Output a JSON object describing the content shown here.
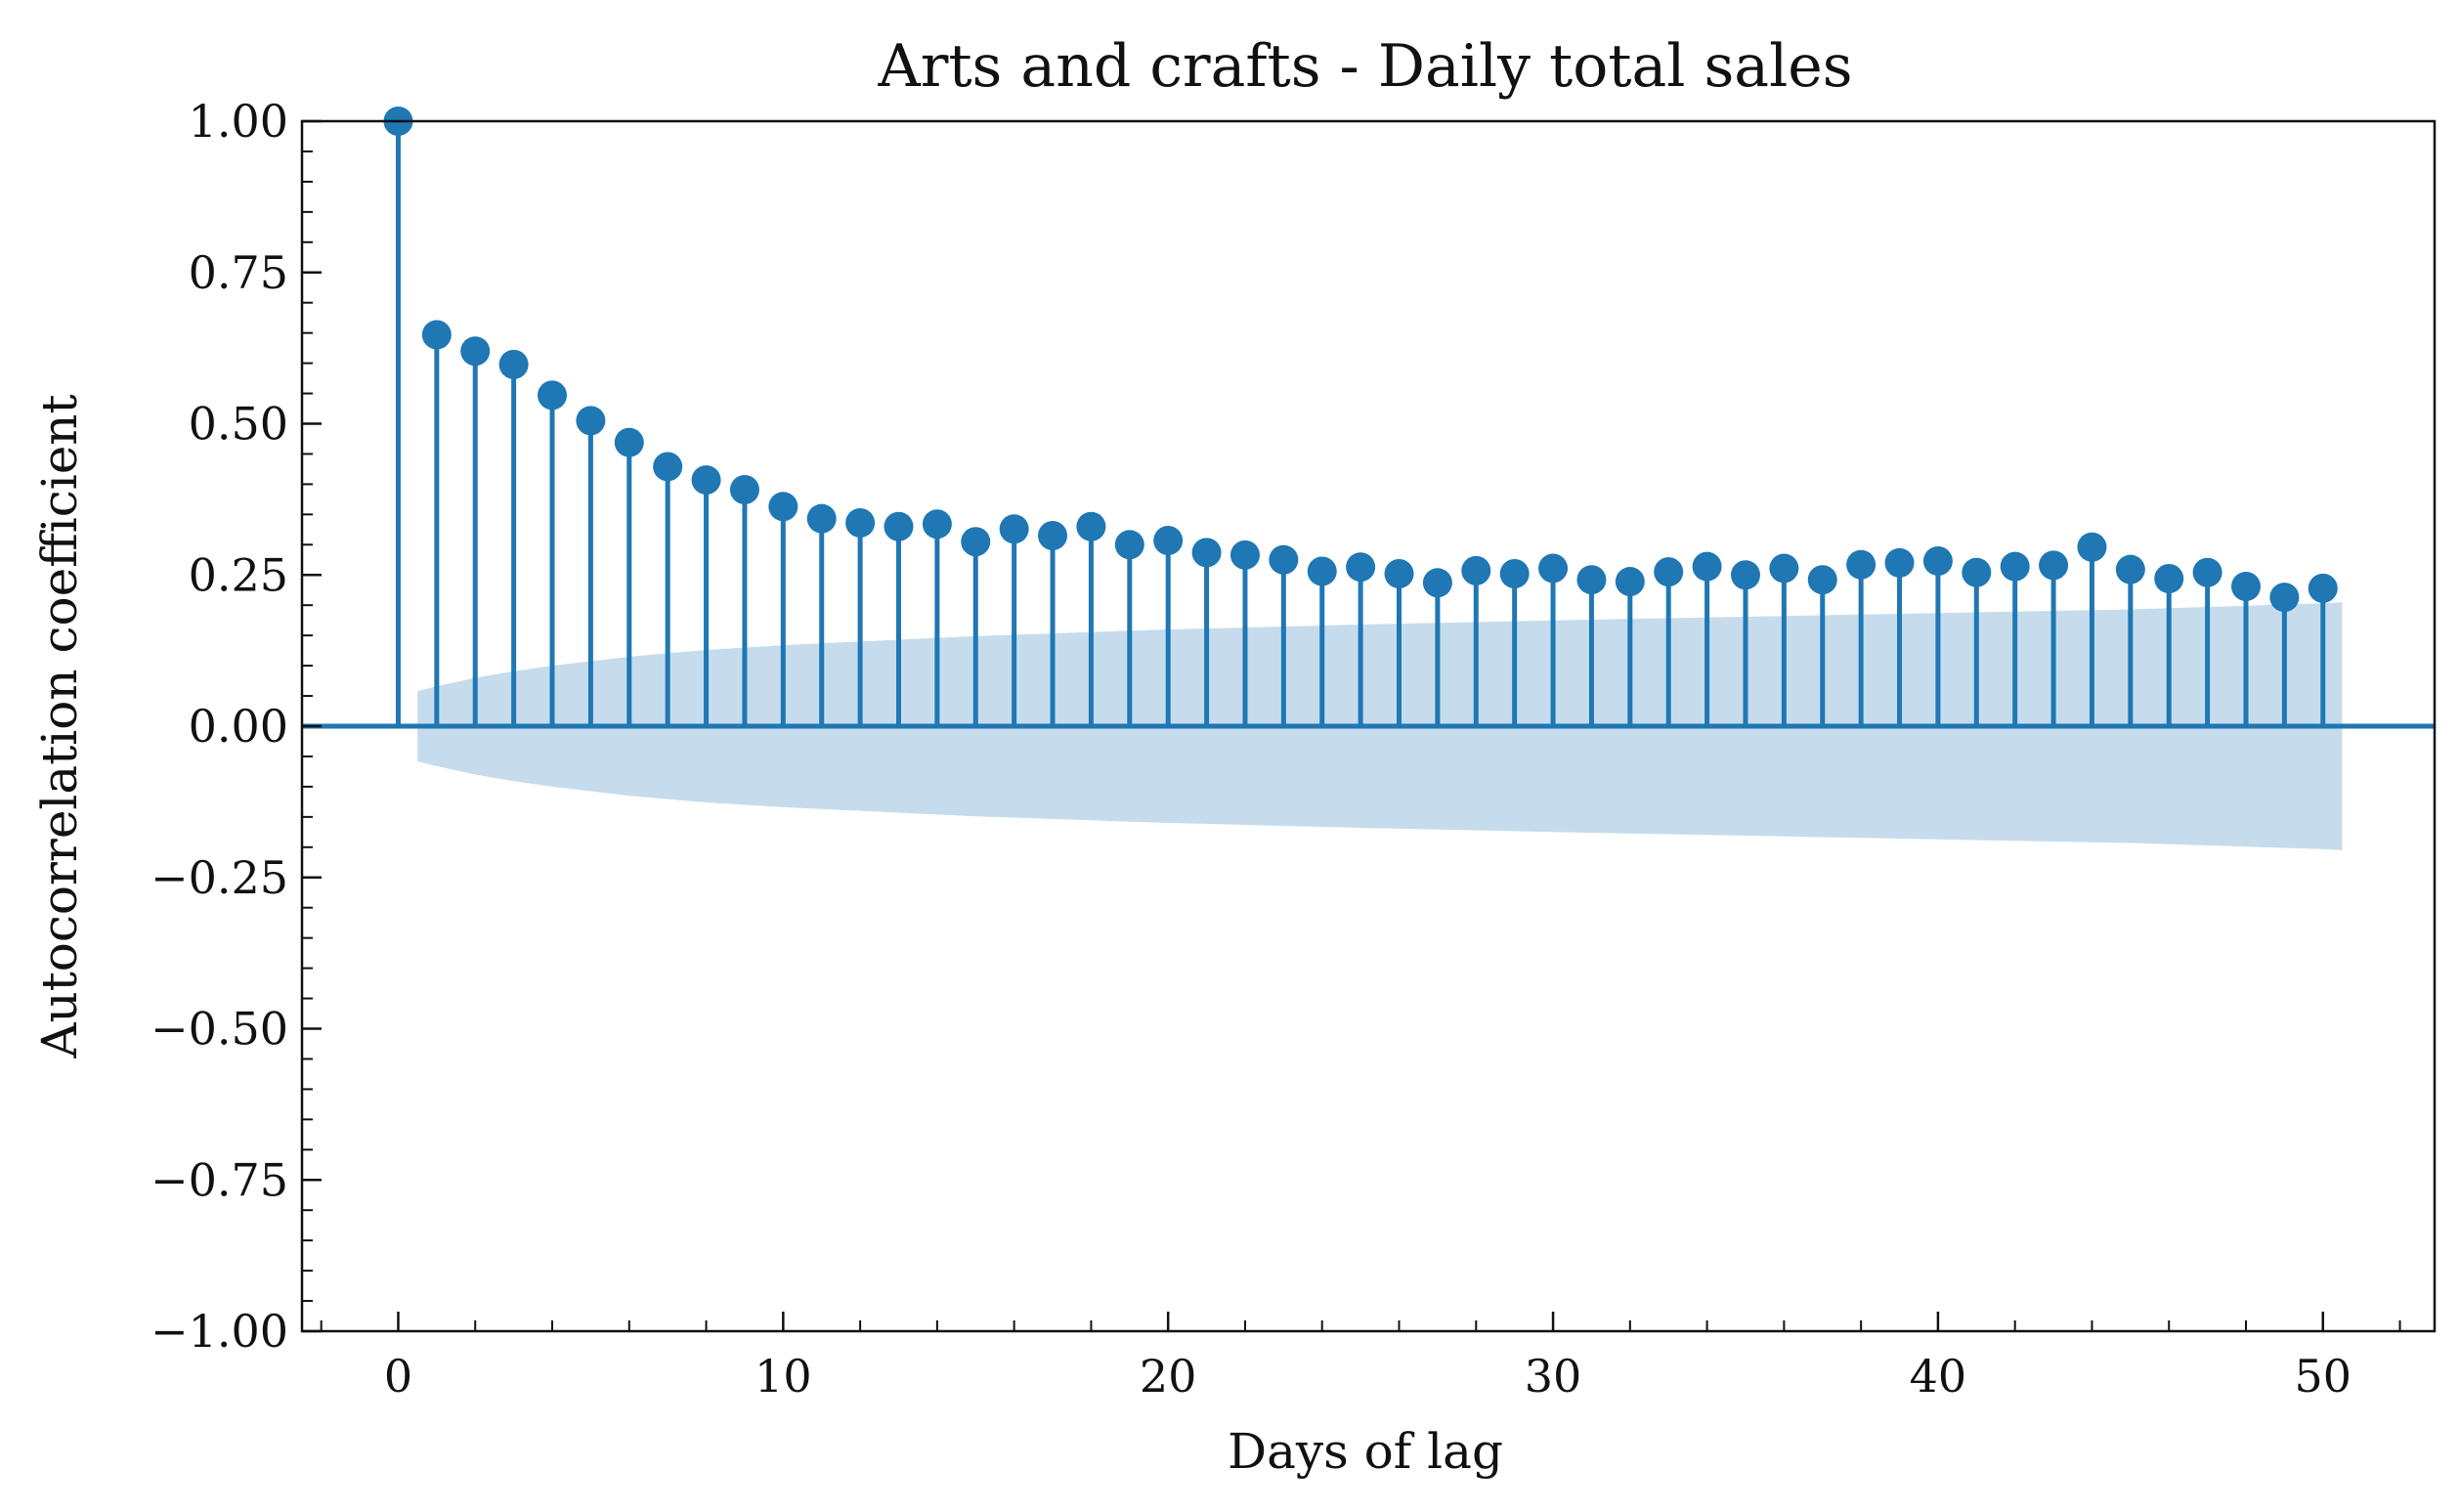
{
  "chart_data": {
    "type": "stem",
    "title": "Arts and crafts - Daily total sales",
    "xlabel": "Days of lag",
    "ylabel": "Autocorrelation coefficient",
    "xlim": [
      -2.5,
      52.9
    ],
    "ylim": [
      -1.0,
      1.0
    ],
    "x_ticks": [
      0,
      10,
      20,
      30,
      40,
      50
    ],
    "x_tick_labels": [
      "0",
      "10",
      "20",
      "30",
      "40",
      "50"
    ],
    "y_ticks": [
      -1.0,
      -0.75,
      -0.5,
      -0.25,
      0.0,
      0.25,
      0.5,
      0.75,
      1.0
    ],
    "y_tick_labels": [
      "−1.00",
      "−0.75",
      "−0.50",
      "−0.25",
      "0.00",
      "0.25",
      "0.50",
      "0.75",
      "1.00"
    ],
    "grid": false,
    "colors": {
      "stem": "#1f77b4",
      "band": "#c6dcec",
      "axis": "#111111"
    },
    "lags": [
      0,
      1,
      2,
      3,
      4,
      5,
      6,
      7,
      8,
      9,
      10,
      11,
      12,
      13,
      14,
      15,
      16,
      17,
      18,
      19,
      20,
      21,
      22,
      23,
      24,
      25,
      26,
      27,
      28,
      29,
      30,
      31,
      32,
      33,
      34,
      35,
      36,
      37,
      38,
      39,
      40,
      41,
      42,
      43,
      44,
      45,
      46,
      47,
      48,
      49,
      50
    ],
    "values": [
      1.0,
      0.647,
      0.62,
      0.598,
      0.547,
      0.505,
      0.469,
      0.429,
      0.407,
      0.391,
      0.363,
      0.343,
      0.336,
      0.33,
      0.334,
      0.305,
      0.326,
      0.315,
      0.33,
      0.3,
      0.307,
      0.287,
      0.283,
      0.275,
      0.256,
      0.263,
      0.252,
      0.237,
      0.257,
      0.252,
      0.261,
      0.242,
      0.239,
      0.255,
      0.264,
      0.25,
      0.261,
      0.242,
      0.267,
      0.27,
      0.273,
      0.254,
      0.264,
      0.266,
      0.296,
      0.259,
      0.244,
      0.254,
      0.231,
      0.213,
      0.228
    ],
    "confidence_band": {
      "x": [
        0.5,
        1,
        2,
        3,
        4,
        6,
        8,
        10,
        15,
        20,
        25,
        30,
        35,
        40,
        45,
        50,
        50.5
      ],
      "upper": [
        0.058,
        0.066,
        0.08,
        0.091,
        0.1,
        0.115,
        0.126,
        0.134,
        0.149,
        0.16,
        0.168,
        0.175,
        0.181,
        0.187,
        0.193,
        0.203,
        0.205
      ],
      "lower": [
        -0.058,
        -0.066,
        -0.08,
        -0.091,
        -0.1,
        -0.115,
        -0.126,
        -0.134,
        -0.149,
        -0.16,
        -0.168,
        -0.175,
        -0.181,
        -0.187,
        -0.193,
        -0.203,
        -0.205
      ]
    }
  }
}
